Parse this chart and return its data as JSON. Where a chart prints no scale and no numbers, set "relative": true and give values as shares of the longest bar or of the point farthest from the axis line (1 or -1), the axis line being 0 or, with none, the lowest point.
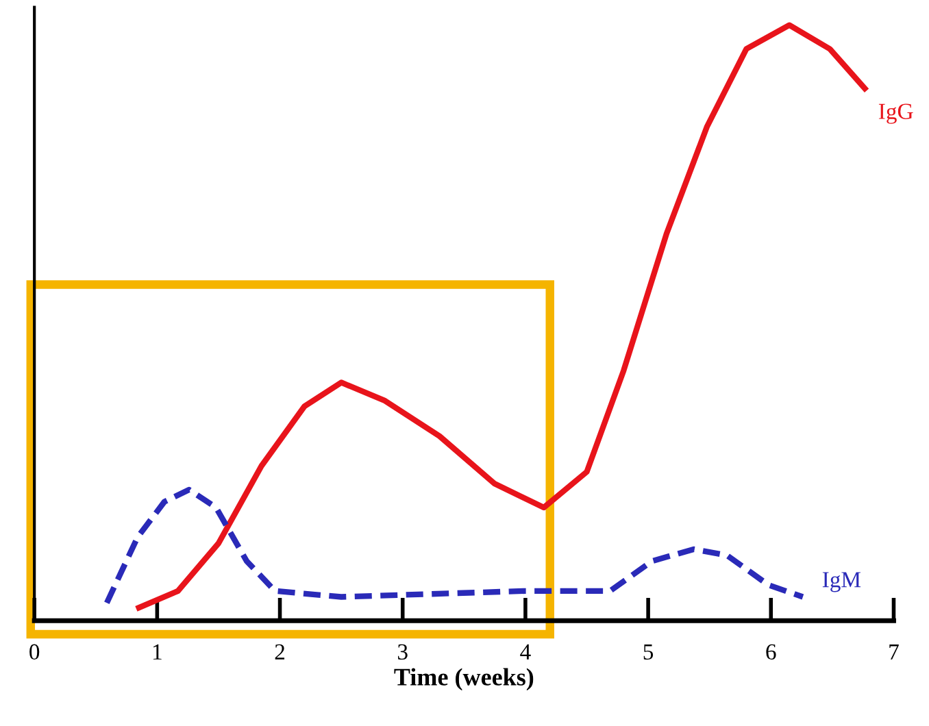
{
  "chart_data": {
    "type": "line",
    "xlabel": "Time (weeks)",
    "relative": true,
    "xlim": [
      0,
      7
    ],
    "xticks": [
      0,
      1,
      2,
      3,
      4,
      5,
      6,
      7
    ],
    "tick_labels": "x",
    "grid": false,
    "legend": false,
    "marker": "none",
    "series": [
      {
        "name": "IgG",
        "color": "#e8141b",
        "line_style": "solid",
        "x": [
          0.83,
          1.17,
          1.5,
          1.85,
          2.2,
          2.5,
          2.85,
          3.3,
          3.75,
          4.15,
          4.5,
          4.8,
          5.15,
          5.48,
          5.8,
          6.15,
          6.48,
          6.78
        ],
        "values": [
          0.02,
          0.05,
          0.13,
          0.26,
          0.36,
          0.4,
          0.37,
          0.31,
          0.23,
          0.19,
          0.25,
          0.42,
          0.65,
          0.83,
          0.96,
          1.0,
          0.96,
          0.89
        ]
      },
      {
        "name": "IgM",
        "color": "#2a2ab8",
        "line_style": "dashed",
        "x": [
          0.59,
          0.84,
          1.06,
          1.26,
          1.48,
          1.73,
          1.96,
          2.5,
          4.0,
          4.69,
          5.03,
          5.37,
          5.64,
          5.98,
          6.26
        ],
        "values": [
          0.03,
          0.14,
          0.2,
          0.22,
          0.19,
          0.1,
          0.05,
          0.04,
          0.05,
          0.05,
          0.1,
          0.12,
          0.11,
          0.06,
          0.04
        ]
      }
    ]
  }
}
